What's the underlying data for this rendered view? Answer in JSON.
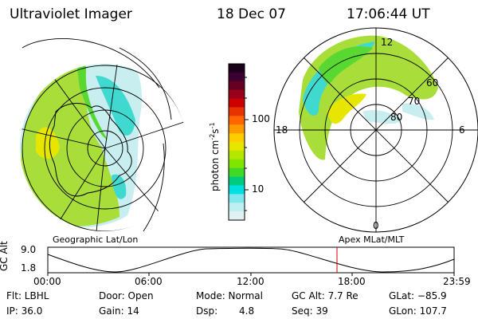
{
  "header": {
    "instrument": "Ultraviolet Imager",
    "date": "18 Dec 07",
    "time": "17:06:44 UT"
  },
  "colorbar": {
    "unit": "photon cm",
    "exp1": "-2",
    "mid": "s",
    "exp2": "-1",
    "ticks": [
      "100",
      "10"
    ],
    "colors": [
      "#1a001a",
      "#3d0033",
      "#660022",
      "#99001a",
      "#cc0000",
      "#e63300",
      "#ff6600",
      "#ff9900",
      "#ffcc00",
      "#e6e600",
      "#b3e600",
      "#80e600",
      "#40d926",
      "#00cc80",
      "#00e0e0",
      "#7fe8ee",
      "#bfeff0",
      "#e0f2f2"
    ]
  },
  "polar": {
    "lat_labels": [
      "80",
      "70",
      "60"
    ],
    "mlt_labels": {
      "top": "12",
      "left": "18",
      "right": "6",
      "bottom": "0"
    }
  },
  "map_labels": {
    "left": "Geographic Lat/Lon",
    "right": "Apex  MLat/MLT"
  },
  "timeline": {
    "ylabel": "GC Alt",
    "ticks_y": [
      "9.0",
      "1.8"
    ],
    "ticks_x": [
      "00:00",
      "06:00",
      "12:00",
      "18:00",
      "23:59"
    ]
  },
  "info": {
    "filter": "Flt: LBHL",
    "ip": "IP: 36.0",
    "door": "Door: Open",
    "gain": "Gain: 14",
    "mode": "Mode: Normal",
    "dsp_label": "Dsp:",
    "dsp_value": "4.8",
    "gc_alt": "GC Alt: 7.7 Re",
    "seq": "Seq: 39",
    "glat": "GLat: −85.9",
    "glon": "GLon: 107.7"
  }
}
